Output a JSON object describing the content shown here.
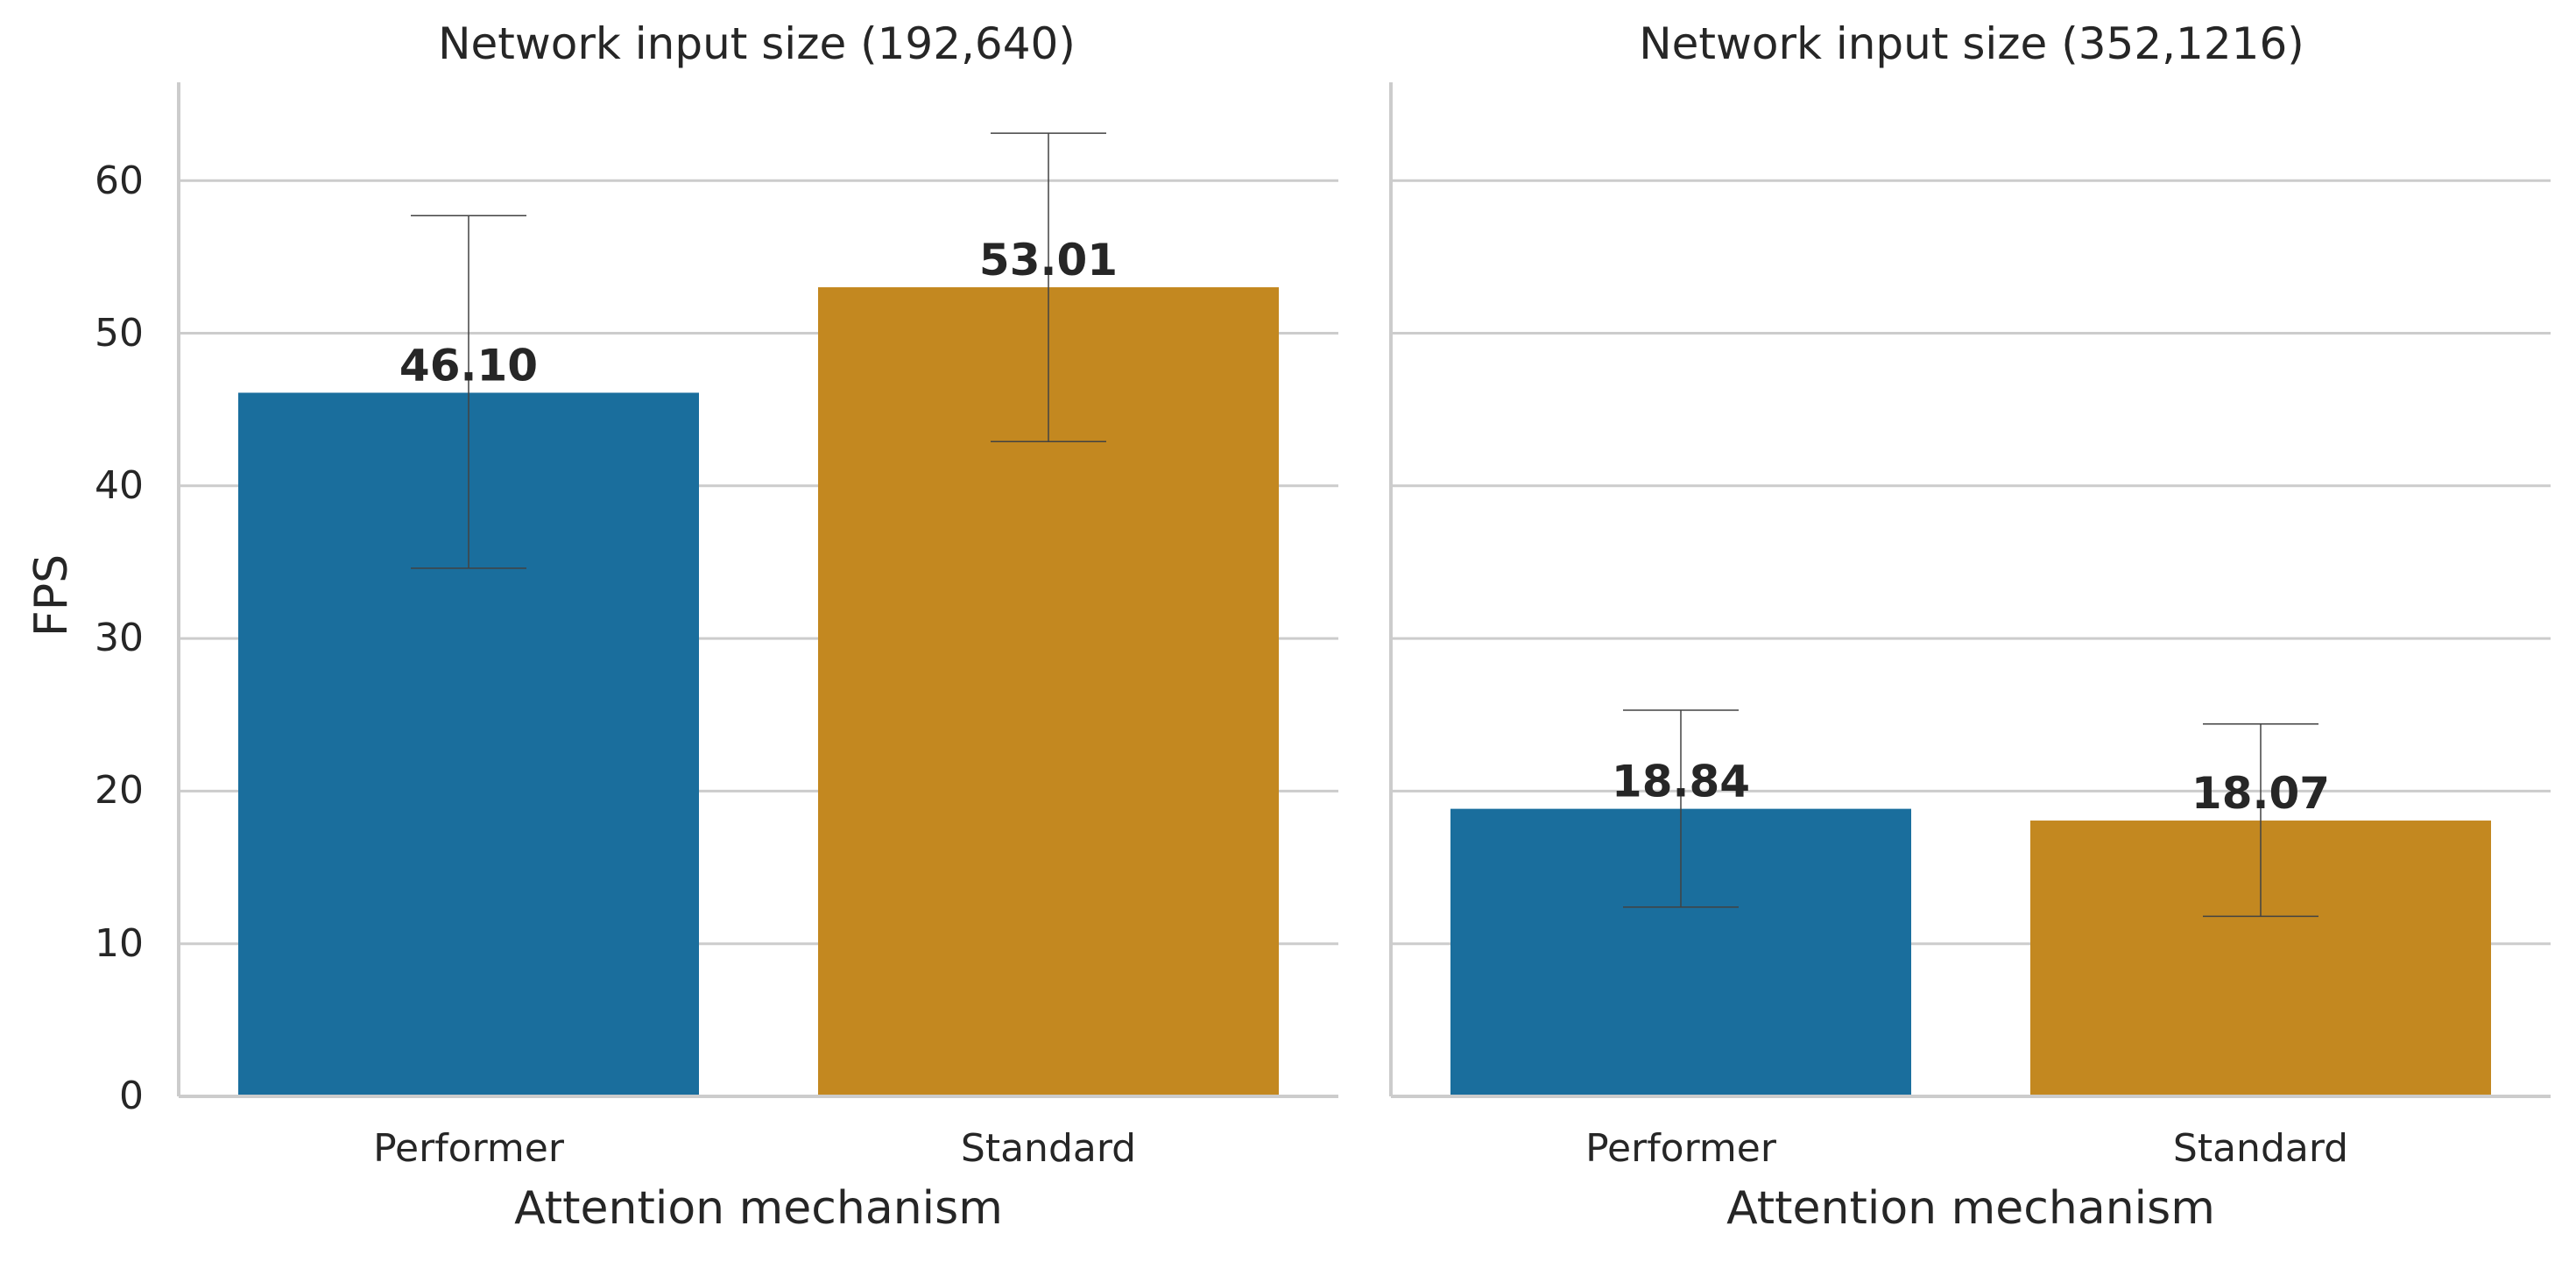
{
  "figure": {
    "ylabel": "FPS",
    "xlabel": "Attention mechanism",
    "yticks": [
      "0",
      "10",
      "20",
      "30",
      "40",
      "50",
      "60"
    ]
  },
  "chart_data": [
    {
      "type": "bar",
      "title": "Network input size (192,640)",
      "xlabel": "Attention mechanism",
      "ylabel": "FPS",
      "categories": [
        "Performer",
        "Standard"
      ],
      "values": [
        46.1,
        53.01
      ],
      "value_labels": [
        "46.10",
        "53.01"
      ],
      "error_low": [
        34.6,
        42.9
      ],
      "error_high": [
        57.7,
        63.1
      ],
      "colors": [
        "#1a6e9d",
        "#c38820"
      ],
      "ylim": [
        0,
        66
      ],
      "yticks": [
        0,
        10,
        20,
        30,
        40,
        50,
        60
      ],
      "grid": "horizontal"
    },
    {
      "type": "bar",
      "title": "Network input size (352,1216)",
      "xlabel": "Attention mechanism",
      "ylabel": "",
      "categories": [
        "Performer",
        "Standard"
      ],
      "values": [
        18.84,
        18.07
      ],
      "value_labels": [
        "18.84",
        "18.07"
      ],
      "error_low": [
        12.4,
        11.8
      ],
      "error_high": [
        25.3,
        24.4
      ],
      "colors": [
        "#1a6e9d",
        "#c38820"
      ],
      "ylim": [
        0,
        66
      ],
      "yticks": [
        0,
        10,
        20,
        30,
        40,
        50,
        60
      ],
      "grid": "horizontal"
    }
  ]
}
